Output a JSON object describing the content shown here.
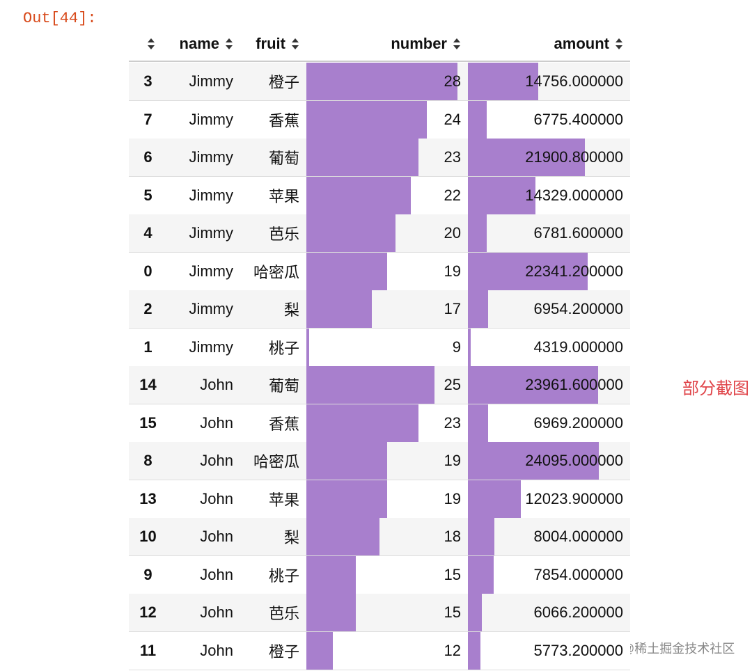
{
  "prompt": "Out[44]:",
  "note": "部分截图",
  "watermark": "@稀土掘金技术社区",
  "table": {
    "columns": [
      "name",
      "fruit",
      "number",
      "amount"
    ],
    "rows": [
      [
        3,
        "Jimmy",
        "橙子",
        28,
        "14756.000000"
      ],
      [
        7,
        "Jimmy",
        "香蕉",
        24,
        "6775.400000"
      ],
      [
        6,
        "Jimmy",
        "葡萄",
        23,
        "21900.800000"
      ],
      [
        5,
        "Jimmy",
        "苹果",
        22,
        "14329.000000"
      ],
      [
        4,
        "Jimmy",
        "芭乐",
        20,
        "6781.600000"
      ],
      [
        0,
        "Jimmy",
        "哈密瓜",
        19,
        "22341.200000"
      ],
      [
        2,
        "Jimmy",
        "梨",
        17,
        "6954.200000"
      ],
      [
        1,
        "Jimmy",
        "桃子",
        9,
        "4319.000000"
      ],
      [
        14,
        "John",
        "葡萄",
        25,
        "23961.600000"
      ],
      [
        15,
        "John",
        "香蕉",
        23,
        "6969.200000"
      ],
      [
        8,
        "John",
        "哈密瓜",
        19,
        "24095.000000"
      ],
      [
        13,
        "John",
        "苹果",
        19,
        "12023.900000"
      ],
      [
        10,
        "John",
        "梨",
        18,
        "8004.000000"
      ],
      [
        9,
        "John",
        "桃子",
        15,
        "7854.000000"
      ],
      [
        12,
        "John",
        "芭乐",
        15,
        "6066.200000"
      ],
      [
        11,
        "John",
        "橙子",
        12,
        "5773.200000"
      ]
    ]
  }
}
